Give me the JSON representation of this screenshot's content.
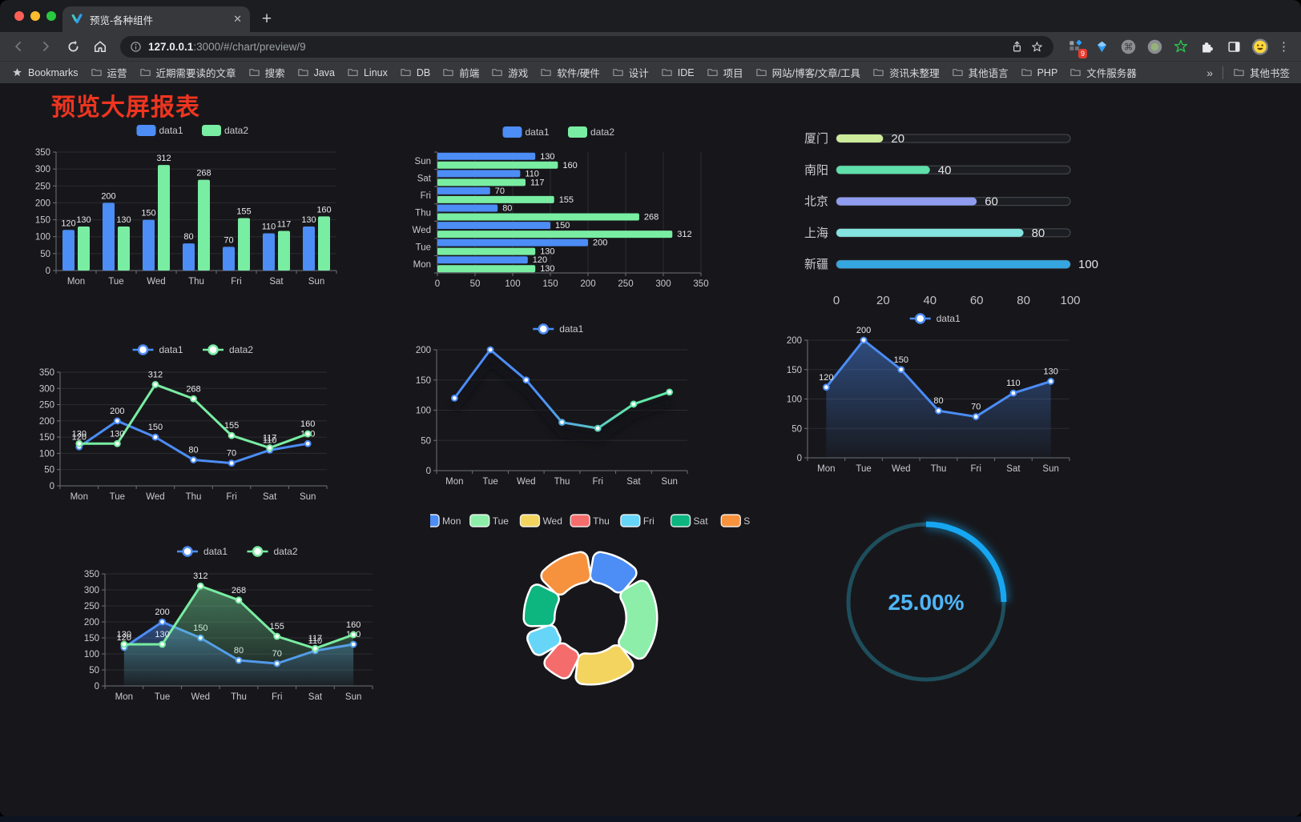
{
  "browser": {
    "traffic_lights": [
      "#ff5f57",
      "#febc2e",
      "#28c840"
    ],
    "tab": {
      "title": "预览-各种组件"
    },
    "glyphs": {
      "close": "✕",
      "plus": "+",
      "kebab": "⋮",
      "chevron": "»"
    },
    "address": {
      "host": "127.0.0.1",
      "tail": ":3000/#/chart/preview/9"
    },
    "extension_badge": "9",
    "bookmarks_label": "Bookmarks",
    "bookmarks": [
      "运营",
      "近期需要读的文章",
      "搜索",
      "Java",
      "Linux",
      "DB",
      "前端",
      "游戏",
      "软件/硬件",
      "设计",
      "IDE",
      "项目",
      "网站/博客/文章/工具",
      "资讯未整理",
      "其他语言",
      "PHP",
      "文件服务器"
    ],
    "other_bookmarks": "其他书签"
  },
  "page": {
    "title": "预览大屏报表",
    "title_color": "#ee3520"
  },
  "chart_data": [
    {
      "id": "c1",
      "type": "bar",
      "orientation": "vertical",
      "categories": [
        "Mon",
        "Tue",
        "Wed",
        "Thu",
        "Fri",
        "Sat",
        "Sun"
      ],
      "series": [
        {
          "name": "data1",
          "color": "#4c8df6",
          "values": [
            120,
            200,
            150,
            80,
            70,
            110,
            130
          ]
        },
        {
          "name": "data2",
          "color": "#79eda2",
          "values": [
            130,
            130,
            312,
            268,
            155,
            117,
            160
          ]
        }
      ],
      "ylim": [
        0,
        350
      ],
      "yticks": [
        0,
        50,
        100,
        150,
        200,
        250,
        300,
        350
      ],
      "labels": true,
      "legend_position": "top",
      "grid": true
    },
    {
      "id": "c2",
      "type": "bar",
      "orientation": "horizontal",
      "category_display": "reversed",
      "categories": [
        "Mon",
        "Tue",
        "Wed",
        "Thu",
        "Fri",
        "Sat",
        "Sun"
      ],
      "series": [
        {
          "name": "data1",
          "color": "#4c8df6",
          "values": [
            120,
            200,
            150,
            80,
            70,
            110,
            130
          ]
        },
        {
          "name": "data2",
          "color": "#79eda2",
          "values": [
            130,
            130,
            312,
            268,
            155,
            117,
            160
          ]
        }
      ],
      "xlim": [
        0,
        350
      ],
      "xticks": [
        0,
        50,
        100,
        150,
        200,
        250,
        300,
        350
      ],
      "labels": true,
      "legend_position": "top",
      "grid": true
    },
    {
      "id": "c3",
      "type": "bar",
      "variant": "progress",
      "categories": [
        "厦门",
        "南阳",
        "北京",
        "上海",
        "新疆"
      ],
      "values": [
        20,
        40,
        60,
        80,
        100
      ],
      "colors": [
        "#cdeb9a",
        "#5fdfaa",
        "#8f9cf0",
        "#84e4df",
        "#35a6e0"
      ],
      "xlim": [
        0,
        100
      ],
      "xticks": [
        0,
        20,
        40,
        60,
        80,
        100
      ]
    },
    {
      "id": "c4",
      "type": "line",
      "categories": [
        "Mon",
        "Tue",
        "Wed",
        "Thu",
        "Fri",
        "Sat",
        "Sun"
      ],
      "series": [
        {
          "name": "data1",
          "color": "#4c8df6",
          "values": [
            120,
            200,
            150,
            80,
            70,
            110,
            130
          ]
        },
        {
          "name": "data2",
          "color": "#79eda2",
          "values": [
            130,
            130,
            312,
            268,
            155,
            117,
            160
          ]
        }
      ],
      "ylim": [
        0,
        350
      ],
      "yticks": [
        0,
        50,
        100,
        150,
        200,
        250,
        300,
        350
      ],
      "labels": true,
      "legend_position": "top",
      "grid": true
    },
    {
      "id": "c5",
      "type": "line",
      "line_style": "gradient-shadow",
      "categories": [
        "Mon",
        "Tue",
        "Wed",
        "Thu",
        "Fri",
        "Sat",
        "Sun"
      ],
      "series": [
        {
          "name": "data1",
          "color_start": "#4c8df6",
          "color_end": "#62e9a8",
          "values": [
            120,
            200,
            150,
            80,
            70,
            110,
            130
          ]
        }
      ],
      "ylim": [
        0,
        200
      ],
      "yticks": [
        0,
        50,
        100,
        150,
        200
      ],
      "labels": false,
      "legend_position": "top",
      "grid": true
    },
    {
      "id": "c6",
      "type": "line",
      "line_style": "area",
      "categories": [
        "Mon",
        "Tue",
        "Wed",
        "Thu",
        "Fri",
        "Sat",
        "Sun"
      ],
      "series": [
        {
          "name": "data1",
          "color": "#4c8df6",
          "area": true,
          "values": [
            120,
            200,
            150,
            80,
            70,
            110,
            130
          ]
        }
      ],
      "ylim": [
        0,
        200
      ],
      "yticks": [
        0,
        50,
        100,
        150,
        200
      ],
      "labels": true,
      "legend_position": "top",
      "grid": true
    },
    {
      "id": "c7",
      "type": "line",
      "line_style": "area",
      "categories": [
        "Mon",
        "Tue",
        "Wed",
        "Thu",
        "Fri",
        "Sat",
        "Sun"
      ],
      "series": [
        {
          "name": "data1",
          "color": "#4c8df6",
          "area": true,
          "values": [
            120,
            200,
            150,
            80,
            70,
            110,
            130
          ]
        },
        {
          "name": "data2",
          "color": "#79eda2",
          "area": true,
          "values": [
            130,
            130,
            312,
            268,
            155,
            117,
            160
          ]
        }
      ],
      "ylim": [
        0,
        350
      ],
      "yticks": [
        0,
        50,
        100,
        150,
        200,
        250,
        300,
        350
      ],
      "labels": true,
      "legend_position": "top",
      "grid": true
    },
    {
      "id": "c8",
      "type": "pie",
      "variant": "donut",
      "categories": [
        "Mon",
        "Tue",
        "Wed",
        "Thu",
        "Fri",
        "Sat",
        "Sun"
      ],
      "values": [
        120,
        200,
        150,
        80,
        70,
        110,
        130
      ],
      "colors": [
        "#4c8df6",
        "#8ceea9",
        "#f3d45f",
        "#f56c6c",
        "#67d5f7",
        "#0db57f",
        "#f6923e"
      ],
      "legend_position": "top"
    },
    {
      "id": "c9",
      "type": "gauge",
      "percent": 25,
      "label": "25.00%",
      "track_color": "#1e4e5c",
      "arc_color": "#17a7f2",
      "text_color": "#4fb5f7"
    }
  ]
}
